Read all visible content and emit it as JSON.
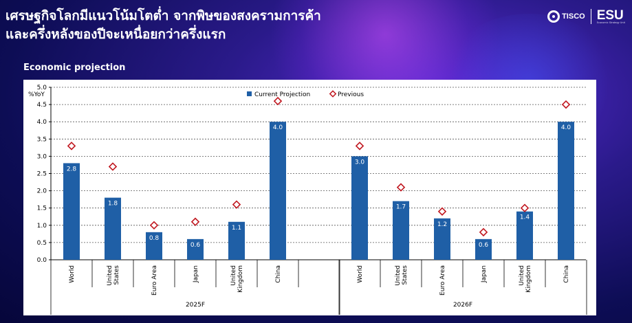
{
  "header": {
    "title_line1": "เศรษฐกิจโลกมีแนวโน้มโตต่ำ จากพิษของสงครามการค้า",
    "title_line2": "และครึ่งหลังของปีจะเหนื่อยกว่าครึ่งแรก",
    "logo_tisco": "TISCO",
    "logo_esu": "ESU",
    "logo_esu_sub": "Economic Strategy Unit"
  },
  "section_title": "Economic projection",
  "colors": {
    "bar": "#1f5fa6",
    "previous_marker": "#c0171f",
    "background": "#0d0d55"
  },
  "chart_data": {
    "type": "bar",
    "ylabel": "%YoY",
    "ylim": [
      0,
      5
    ],
    "yticks": [
      "0.0",
      "0.5",
      "1.0",
      "1.5",
      "2.0",
      "2.5",
      "3.0",
      "3.5",
      "4.0",
      "4.5",
      "5.0"
    ],
    "grid": true,
    "legend_position": "top",
    "groups": [
      "2025F",
      "2026F"
    ],
    "categories": [
      "World",
      "United States",
      "Euro Area",
      "Japan",
      "United Kingdom",
      "China"
    ],
    "category_lines": [
      [
        "World"
      ],
      [
        "United",
        "States"
      ],
      [
        "Euro Area"
      ],
      [
        "Japan"
      ],
      [
        "United",
        "Kingdom"
      ],
      [
        "China"
      ]
    ],
    "series": [
      {
        "name": "Current Projection",
        "type": "bar",
        "values": {
          "2025F": [
            2.8,
            1.8,
            0.8,
            0.6,
            1.1,
            4.0
          ],
          "2026F": [
            3.0,
            1.7,
            1.2,
            0.6,
            1.4,
            4.0
          ]
        },
        "labels": {
          "2025F": [
            "2.8",
            "1.8",
            "0.8",
            "0.6",
            "1.1",
            "4.0"
          ],
          "2026F": [
            "3.0",
            "1.7",
            "1.2",
            "0.6",
            "1.4",
            "4.0"
          ]
        }
      },
      {
        "name": "Previous",
        "type": "marker",
        "values": {
          "2025F": [
            3.3,
            2.7,
            1.0,
            1.1,
            1.6,
            4.6
          ],
          "2026F": [
            3.3,
            2.1,
            1.4,
            0.8,
            1.5,
            4.5
          ]
        }
      }
    ]
  }
}
